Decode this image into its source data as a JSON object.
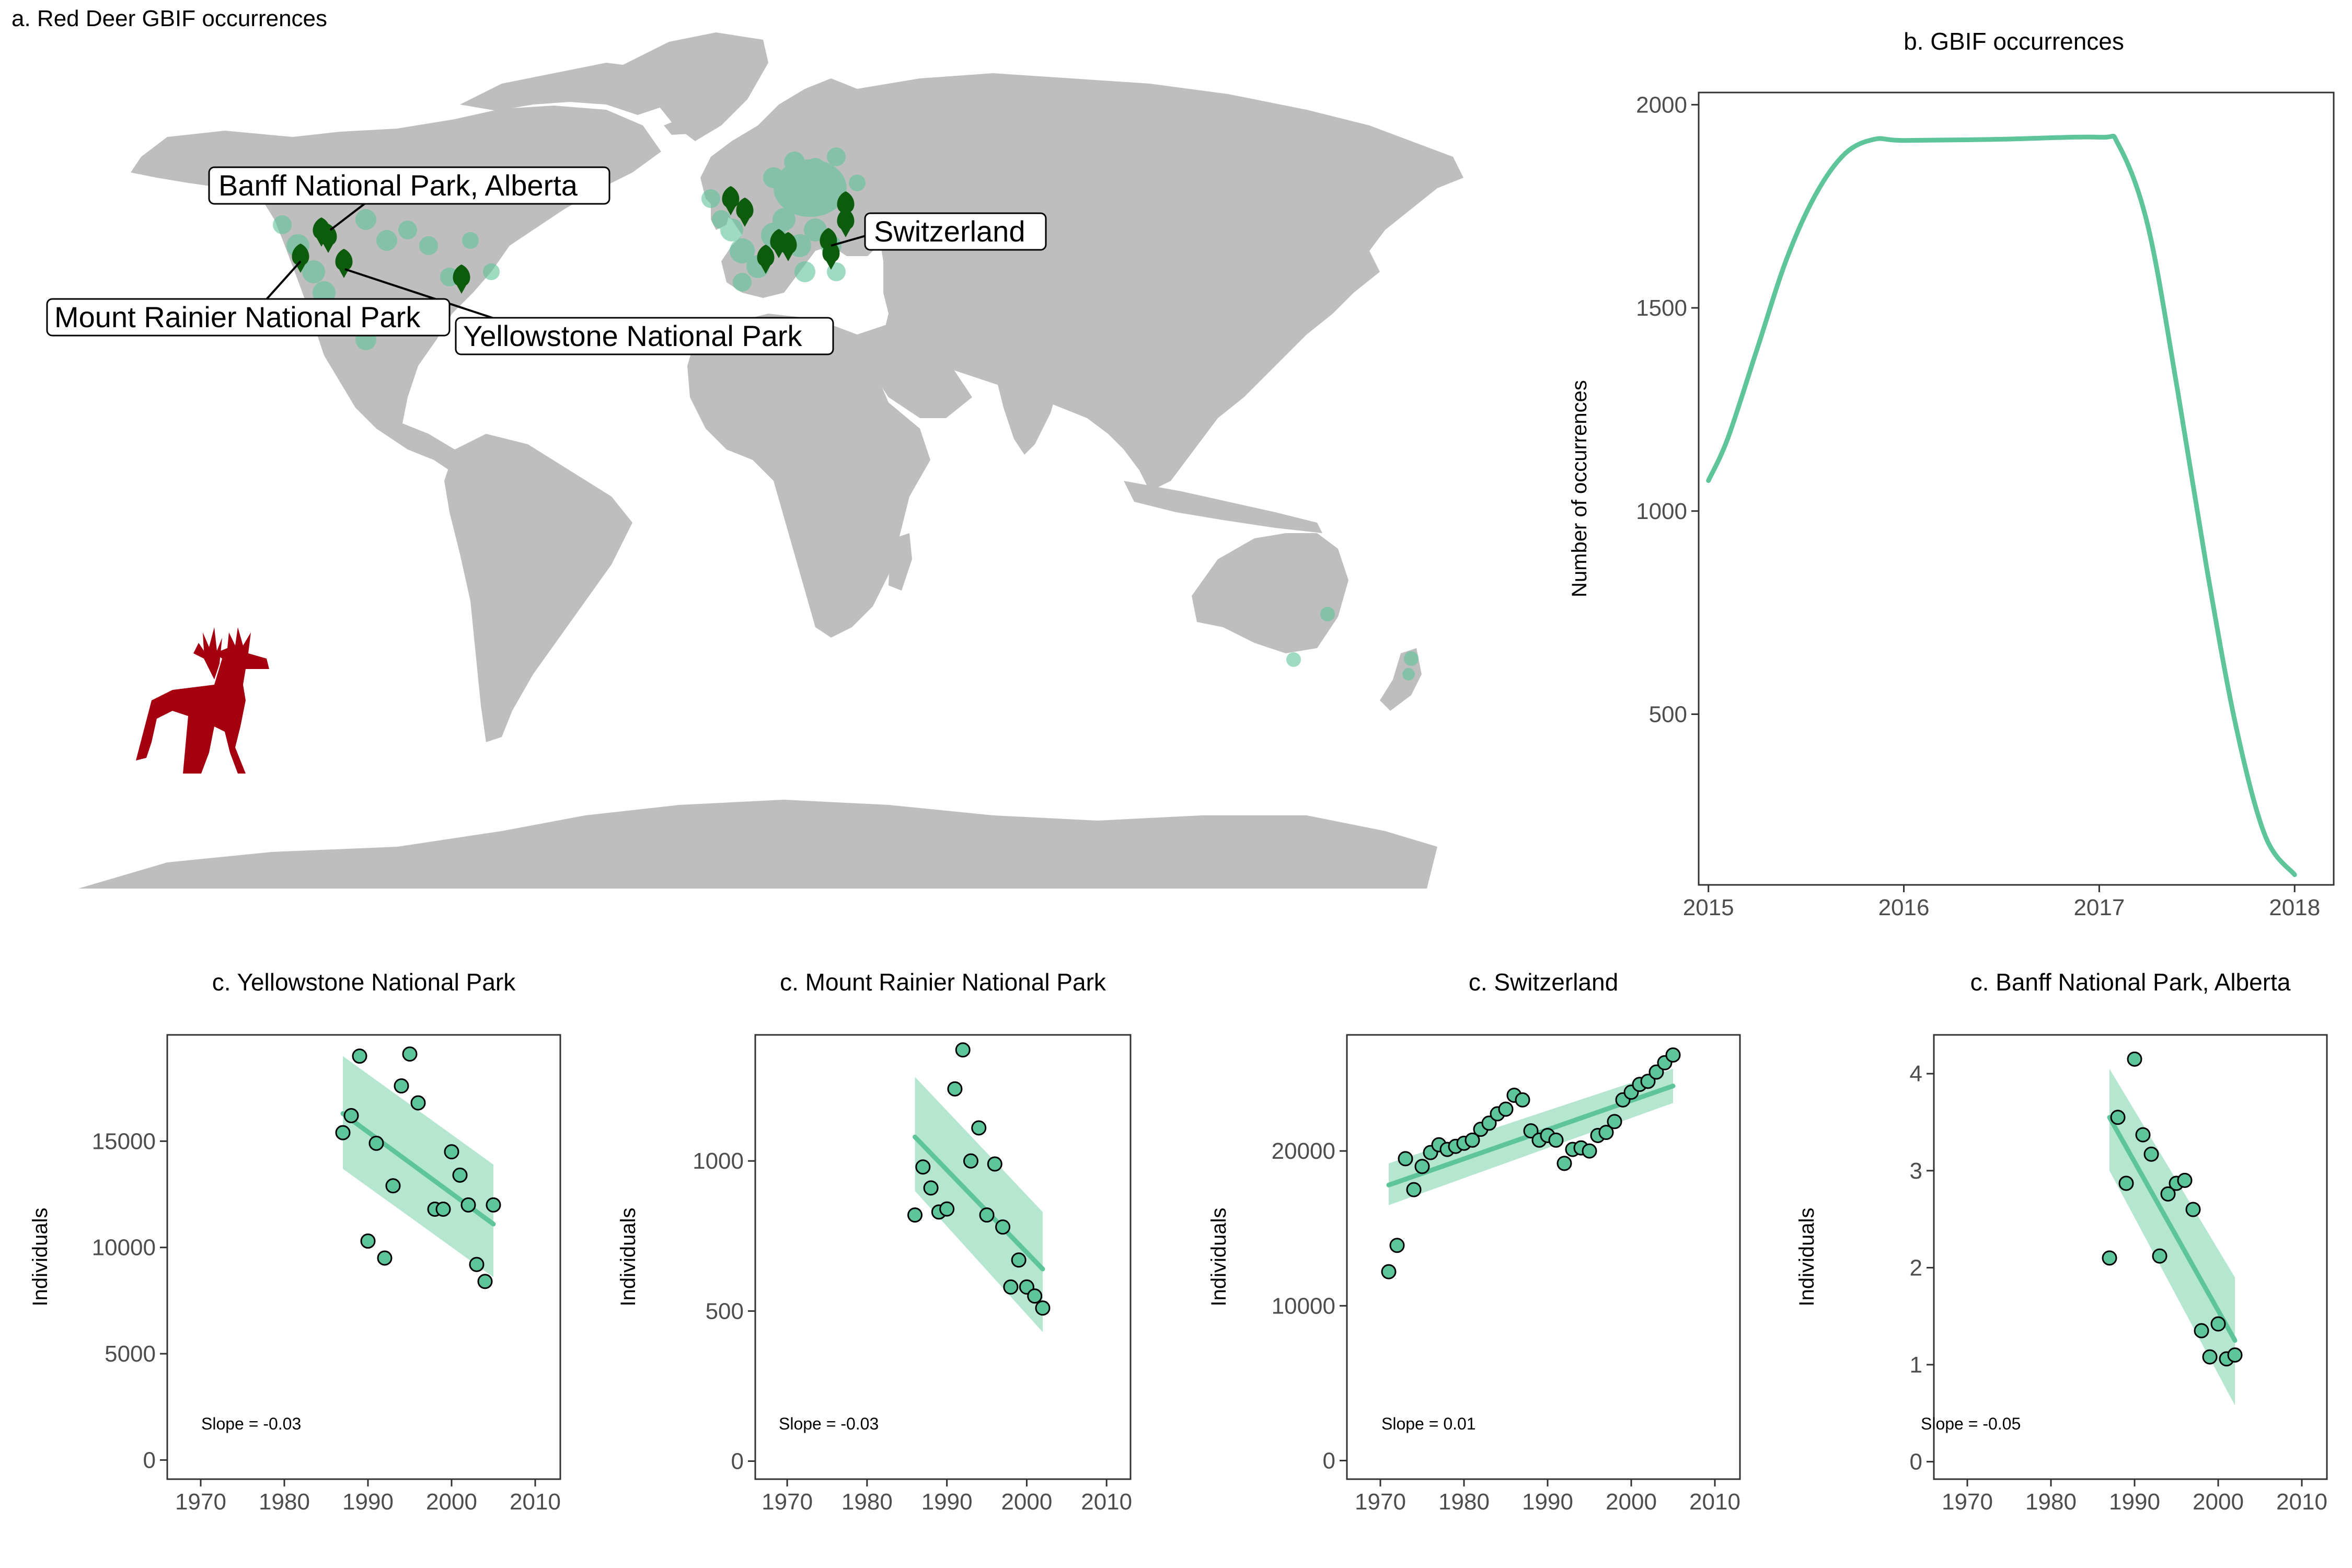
{
  "panel_a": {
    "title": "a. Red Deer GBIF occurrences",
    "labels": {
      "banff": "Banff National Park, Alberta",
      "switzerland": "Switzerland",
      "rainier": "Mount Rainier National Park",
      "yellowstone": "Yellowstone National Park"
    },
    "colors": {
      "land": "#bebebe",
      "occurrence": "#5ec49a",
      "site_marker": "#0d5c0d",
      "deer_icon": "#a50010"
    },
    "icons": [
      "map-pin-icon",
      "red-deer-icon"
    ]
  },
  "chart_data": [
    {
      "id": "b",
      "type": "line",
      "title": "b. GBIF occurrences",
      "xlabel": "",
      "ylabel": "Number of occurrences",
      "x": [
        2015.0,
        2015.1,
        2015.25,
        2015.4,
        2015.55,
        2015.7,
        2015.85,
        2016.0,
        2016.5,
        2017.0,
        2017.1,
        2017.25,
        2017.4,
        2017.55,
        2017.7,
        2017.85,
        2018.0
      ],
      "values": [
        1075,
        1180,
        1400,
        1620,
        1780,
        1880,
        1915,
        1912,
        1915,
        1920,
        1900,
        1700,
        1300,
        860,
        470,
        200,
        105
      ],
      "x_ticks": [
        "2015",
        "2016",
        "2017",
        "2018"
      ],
      "y_ticks": [
        "500",
        "1000",
        "1500",
        "2000"
      ],
      "xlim": [
        2014.95,
        2018.2
      ],
      "ylim": [
        80,
        2030
      ],
      "color": "#5ec49a"
    },
    {
      "id": "c1",
      "type": "scatter",
      "title": "c.  Yellowstone National Park",
      "xlabel": "",
      "ylabel": "Individuals",
      "annotation": "Slope = -0.03",
      "x": [
        1987,
        1988,
        1989,
        1990,
        1991,
        1992,
        1993,
        1994,
        1995,
        1996,
        1998,
        1999,
        2000,
        2001,
        2002,
        2003,
        2004,
        2005
      ],
      "y": [
        15400,
        16200,
        19000,
        10300,
        14900,
        9500,
        12900,
        17600,
        19100,
        16800,
        11800,
        11800,
        14500,
        13400,
        12000,
        9200,
        8400,
        12000
      ],
      "fit": {
        "x": [
          1987,
          2005
        ],
        "y": [
          16300,
          11100
        ],
        "ci_lower": [
          13700,
          8600
        ],
        "ci_upper": [
          19000,
          13900
        ]
      },
      "x_ticks": [
        "1970",
        "1980",
        "1990",
        "2000",
        "2010"
      ],
      "y_ticks": [
        "0",
        "5000",
        "10000",
        "15000"
      ],
      "xlim": [
        1966,
        2013
      ],
      "ylim": [
        -900,
        20000
      ]
    },
    {
      "id": "c2",
      "type": "scatter",
      "title": "c.  Mount Rainier National Park",
      "xlabel": "",
      "ylabel": "Individuals",
      "annotation": "Slope = -0.03",
      "x": [
        1986,
        1987,
        1988,
        1989,
        1990,
        1991,
        1992,
        1993,
        1994,
        1995,
        1996,
        1997,
        1998,
        1999,
        2000,
        2001,
        2002
      ],
      "y": [
        820,
        980,
        910,
        830,
        840,
        1240,
        1370,
        1000,
        1110,
        820,
        990,
        780,
        580,
        670,
        580,
        550,
        510
      ],
      "fit": {
        "x": [
          1986,
          2002
        ],
        "y": [
          1080,
          640
        ],
        "ci_lower": [
          900,
          430
        ],
        "ci_upper": [
          1280,
          830
        ]
      },
      "x_ticks": [
        "1970",
        "1980",
        "1990",
        "2000",
        "2010"
      ],
      "y_ticks": [
        "0",
        "500",
        "1000"
      ],
      "xlim": [
        1966,
        2013
      ],
      "ylim": [
        -60,
        1420
      ]
    },
    {
      "id": "c3",
      "type": "scatter",
      "title": "c.  Switzerland",
      "xlabel": "",
      "ylabel": "Individuals",
      "annotation": "Slope = 0.01",
      "x": [
        1971,
        1972,
        1973,
        1974,
        1975,
        1976,
        1977,
        1978,
        1979,
        1980,
        1981,
        1982,
        1983,
        1984,
        1985,
        1986,
        1987,
        1988,
        1989,
        1990,
        1991,
        1992,
        1993,
        1994,
        1995,
        1996,
        1997,
        1998,
        1999,
        2000,
        2001,
        2002,
        2003,
        2004,
        2005
      ],
      "y": [
        12200,
        13900,
        19500,
        17500,
        19000,
        19900,
        20400,
        20100,
        20300,
        20500,
        20700,
        21400,
        21800,
        22400,
        22700,
        23600,
        23300,
        21300,
        20700,
        21000,
        20700,
        19200,
        20100,
        20200,
        20000,
        21000,
        21200,
        21900,
        23300,
        23800,
        24300,
        24500,
        25100,
        25700,
        26200
      ],
      "fit": {
        "x": [
          1971,
          2005
        ],
        "y": [
          17800,
          24200
        ],
        "ci_lower": [
          16500,
          23100
        ],
        "ci_upper": [
          19200,
          25300
        ]
      },
      "x_ticks": [
        "1970",
        "1980",
        "1990",
        "2000",
        "2010"
      ],
      "y_ticks": [
        "0",
        "10000",
        "20000"
      ],
      "xlim": [
        1966,
        2013
      ],
      "ylim": [
        -1200,
        27500
      ]
    },
    {
      "id": "c4",
      "type": "scatter",
      "title": "c.  Banff National Park, Alberta",
      "xlabel": "",
      "ylabel": "Individuals",
      "annotation": "Slope = -0.05",
      "x": [
        1987,
        1988,
        1989,
        1990,
        1991,
        1992,
        1993,
        1994,
        1995,
        1996,
        1997,
        1998,
        1999,
        2000,
        2001,
        2002
      ],
      "y": [
        2.1,
        3.55,
        2.87,
        4.15,
        3.37,
        3.17,
        2.12,
        2.76,
        2.87,
        2.9,
        2.6,
        1.35,
        1.08,
        1.42,
        1.06,
        1.1
      ],
      "fit": {
        "x": [
          1987,
          2002
        ],
        "y": [
          3.55,
          1.25
        ],
        "ci_lower": [
          3.0,
          0.58
        ],
        "ci_upper": [
          4.05,
          1.9
        ]
      },
      "x_ticks": [
        "1970",
        "1980",
        "1990",
        "2000",
        "2010"
      ],
      "y_ticks": [
        "0",
        "1",
        "2",
        "3",
        "4"
      ],
      "xlim": [
        1966,
        2013
      ],
      "ylim": [
        -0.18,
        4.4
      ]
    }
  ]
}
